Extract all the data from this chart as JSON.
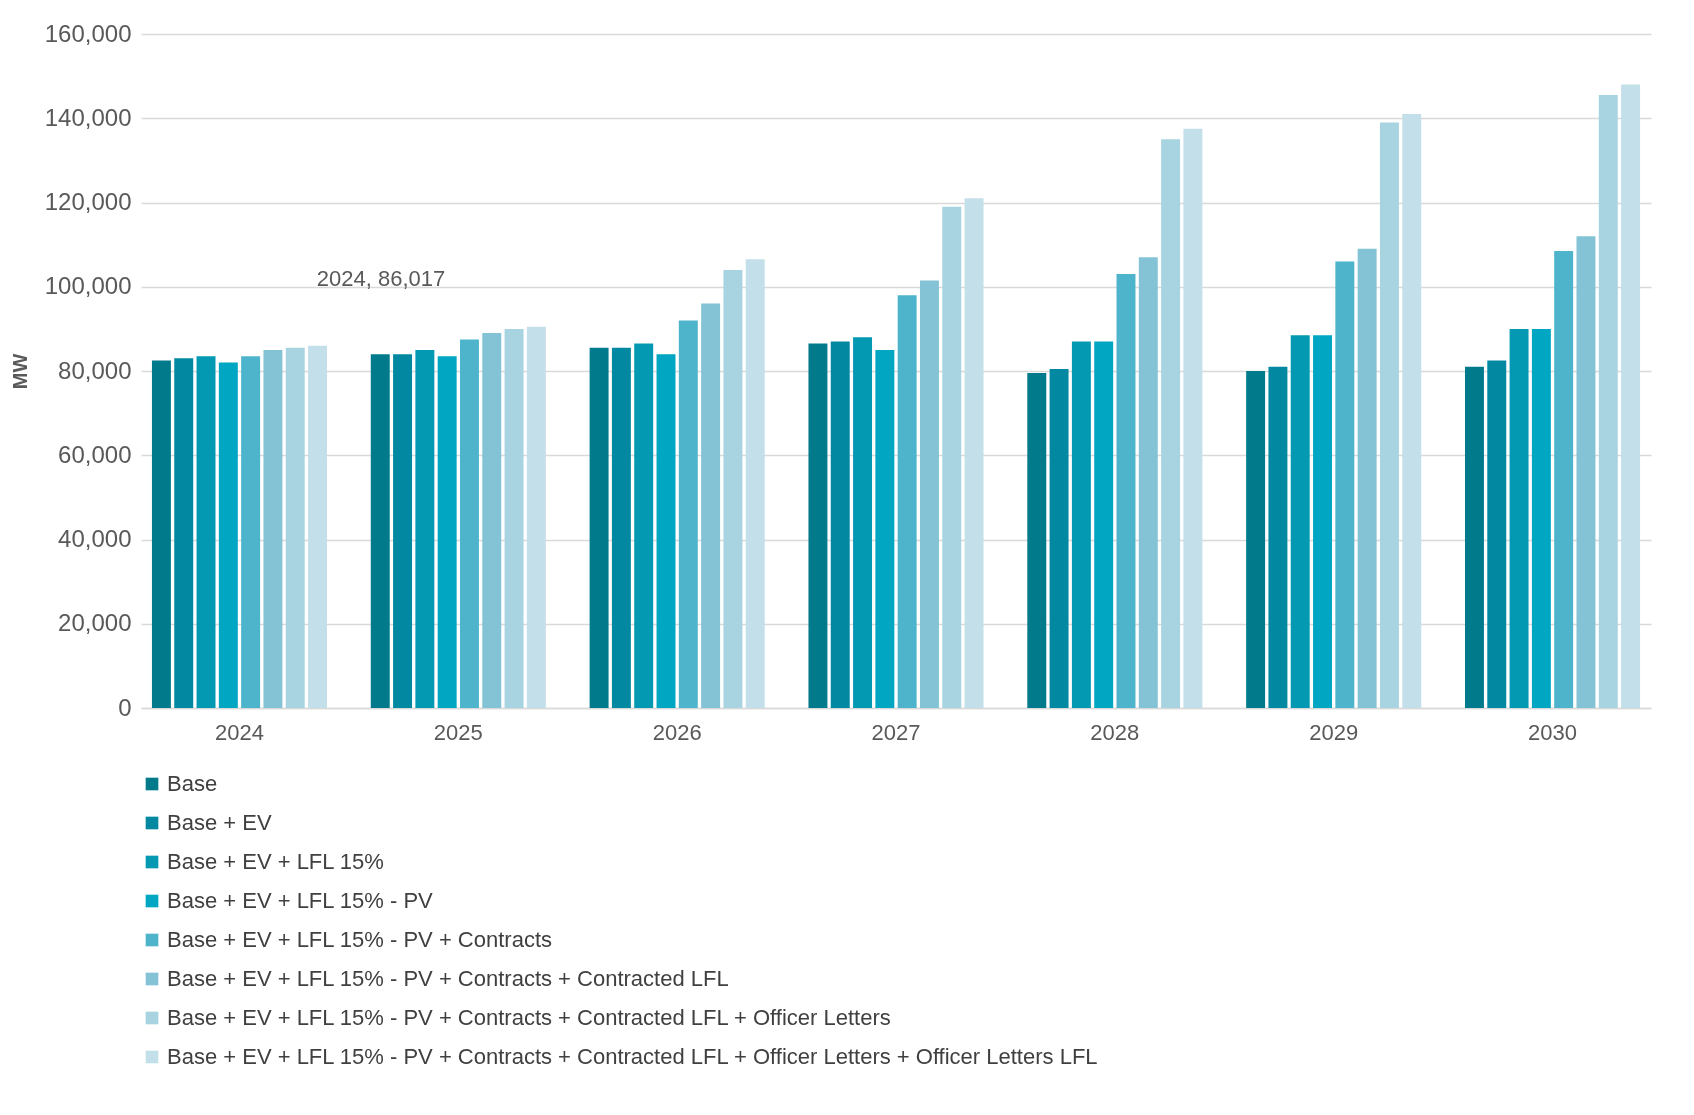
{
  "chart_data": {
    "type": "bar",
    "ylabel": "MW",
    "categories": [
      "2024",
      "2025",
      "2026",
      "2027",
      "2028",
      "2029",
      "2030"
    ],
    "series": [
      {
        "name": "Base",
        "color": "#017a8c",
        "values": [
          82500,
          84000,
          85500,
          86500,
          79500,
          80000,
          81000
        ]
      },
      {
        "name": "Base + EV",
        "color": "#0289a1",
        "values": [
          83000,
          84000,
          85500,
          87000,
          80500,
          81000,
          82500
        ]
      },
      {
        "name": "Base + EV + LFL 15%",
        "color": "#0399b2",
        "values": [
          83500,
          85000,
          86500,
          88000,
          87000,
          88500,
          90000
        ]
      },
      {
        "name": "Base + EV + LFL 15% - PV",
        "color": "#01a6c2",
        "values": [
          82000,
          83500,
          84000,
          85000,
          87000,
          88500,
          90000
        ]
      },
      {
        "name": "Base + EV + LFL 15% - PV + Contracts",
        "color": "#4db4cc",
        "values": [
          83500,
          87500,
          92000,
          98000,
          103000,
          106000,
          108500
        ]
      },
      {
        "name": "Base + EV + LFL 15% - PV + Contracts + Contracted LFL",
        "color": "#84c3d6",
        "values": [
          85000,
          89000,
          96000,
          101500,
          107000,
          109000,
          112000
        ]
      },
      {
        "name": "Base + EV + LFL 15% - PV + Contracts + Contracted LFL + Officer Letters",
        "color": "#a8d3e0",
        "values": [
          85500,
          90000,
          104000,
          119000,
          135000,
          139000,
          145500
        ]
      },
      {
        "name": "Base + EV + LFL 15% - PV + Contracts + Contracted LFL + Officer Letters + Officer Letters LFL",
        "color": "#c3dfe9",
        "values": [
          86017,
          90500,
          106500,
          121000,
          137500,
          141000,
          148000
        ]
      }
    ],
    "ylim": [
      0,
      160000
    ],
    "yticks": [
      0,
      {
        "value": 20000,
        "label": "20,000"
      },
      {
        "value": 40000,
        "label": "40,000"
      },
      {
        "value": 60000,
        "label": "60,000"
      },
      {
        "value": 80000,
        "label": "80,000"
      },
      {
        "value": 100000,
        "label": "100,000"
      },
      {
        "value": 120000,
        "label": "120,000"
      },
      {
        "value": 140000,
        "label": "140,000"
      },
      {
        "value": 160000,
        "label": "160,000"
      }
    ],
    "grid": "y",
    "legend": "bottom",
    "annotations": [
      "2024, 86,017"
    ]
  }
}
